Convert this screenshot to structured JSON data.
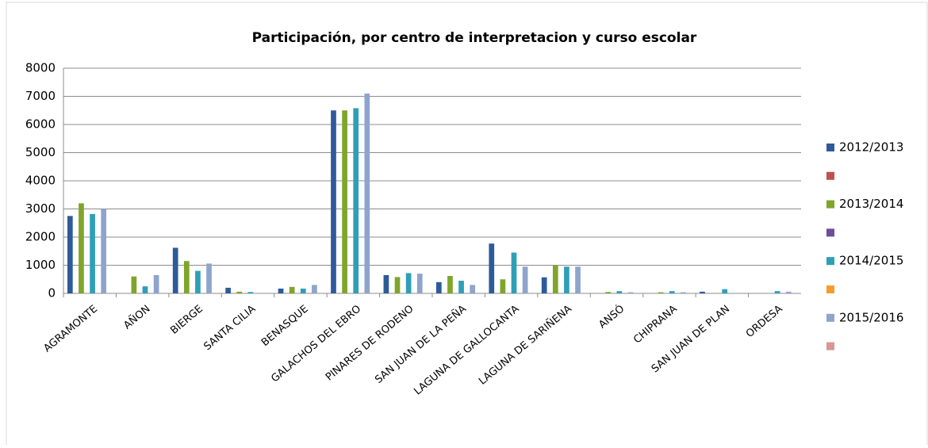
{
  "chart_data": {
    "type": "bar",
    "title": "Participación, por centro de interpretacion y curso escolar",
    "categories": [
      "AGRAMONTE",
      "AÑON",
      "BIERGE",
      "SANTA CILIA",
      "BENASQUE",
      "GALACHOS DEL EBRO",
      "PINARES DE RODENO",
      "SAN JUAN DE LA PEÑA",
      "LAGUNA DE GALLOCANTA",
      "LAGUNA DE SARIÑENA",
      "ANSÓ",
      "CHIPRANA",
      "SAN JUAN DE PLAN",
      "ORDESA"
    ],
    "series": [
      {
        "name": "2012/2013",
        "color": "#2d5b9a",
        "values": [
          2750,
          0,
          1620,
          200,
          170,
          6500,
          650,
          400,
          1770,
          570,
          0,
          0,
          60,
          0
        ]
      },
      {
        "color": "#c0504d",
        "values": [
          null,
          null,
          null,
          null,
          null,
          null,
          null,
          null,
          null,
          null,
          null,
          null,
          null,
          null
        ]
      },
      {
        "name": "2013/2014",
        "color": "#7fa52b",
        "values": [
          3200,
          600,
          1150,
          60,
          230,
          6500,
          580,
          620,
          500,
          1000,
          50,
          40,
          0,
          0
        ]
      },
      {
        "color": "#6f4d99",
        "values": [
          null,
          null,
          null,
          null,
          null,
          null,
          null,
          null,
          null,
          null,
          null,
          null,
          null,
          null
        ]
      },
      {
        "name": "2014/2015",
        "color": "#2f9fb6",
        "values": [
          2820,
          250,
          800,
          50,
          170,
          6580,
          720,
          450,
          1450,
          950,
          80,
          80,
          150,
          80
        ]
      },
      {
        "color": "#f59d2c",
        "values": [
          null,
          null,
          null,
          null,
          null,
          null,
          null,
          null,
          null,
          null,
          null,
          null,
          null,
          null
        ]
      },
      {
        "name": "2015/2016",
        "color": "#8ea4cd",
        "values": [
          3000,
          650,
          1060,
          0,
          300,
          7100,
          700,
          300,
          950,
          950,
          40,
          40,
          0,
          60
        ]
      },
      {
        "color": "#d99694",
        "values": [
          null,
          null,
          null,
          null,
          null,
          null,
          null,
          null,
          null,
          null,
          null,
          null,
          null,
          null
        ]
      }
    ],
    "ylim": [
      0,
      8000
    ],
    "yticks": [
      0,
      1000,
      2000,
      3000,
      4000,
      5000,
      6000,
      7000,
      8000
    ],
    "grid": true,
    "legend": "right"
  }
}
